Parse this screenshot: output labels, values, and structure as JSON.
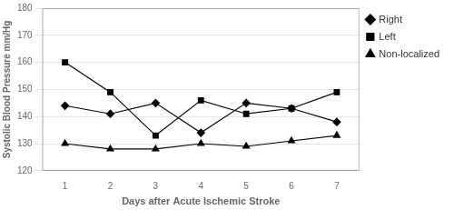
{
  "chart_data": {
    "type": "line",
    "x": [
      1,
      2,
      3,
      4,
      5,
      6,
      7
    ],
    "series": [
      {
        "name": "Right",
        "color": "#000000",
        "marker": "diamond",
        "values": [
          144,
          141,
          145,
          134,
          145,
          143,
          138
        ]
      },
      {
        "name": "Left",
        "color": "#000000",
        "marker": "square",
        "values": [
          160,
          149,
          133,
          146,
          141,
          143,
          149
        ]
      },
      {
        "name": "Non-localized",
        "color": "#000000",
        "marker": "triangle",
        "values": [
          130,
          128,
          128,
          130,
          129,
          131,
          133
        ]
      }
    ],
    "x_label": "Days after Acute Ischemic Stroke",
    "y_label": "Systolic Blood Pressure mm/Hg",
    "xlim": [
      0.5,
      7.5
    ],
    "xticks": [
      1,
      2,
      3,
      4,
      5,
      6,
      7
    ],
    "ylim": [
      120,
      180
    ],
    "yticks": [
      120,
      130,
      140,
      150,
      160,
      170,
      180
    ],
    "grid": true,
    "legend": "right"
  }
}
